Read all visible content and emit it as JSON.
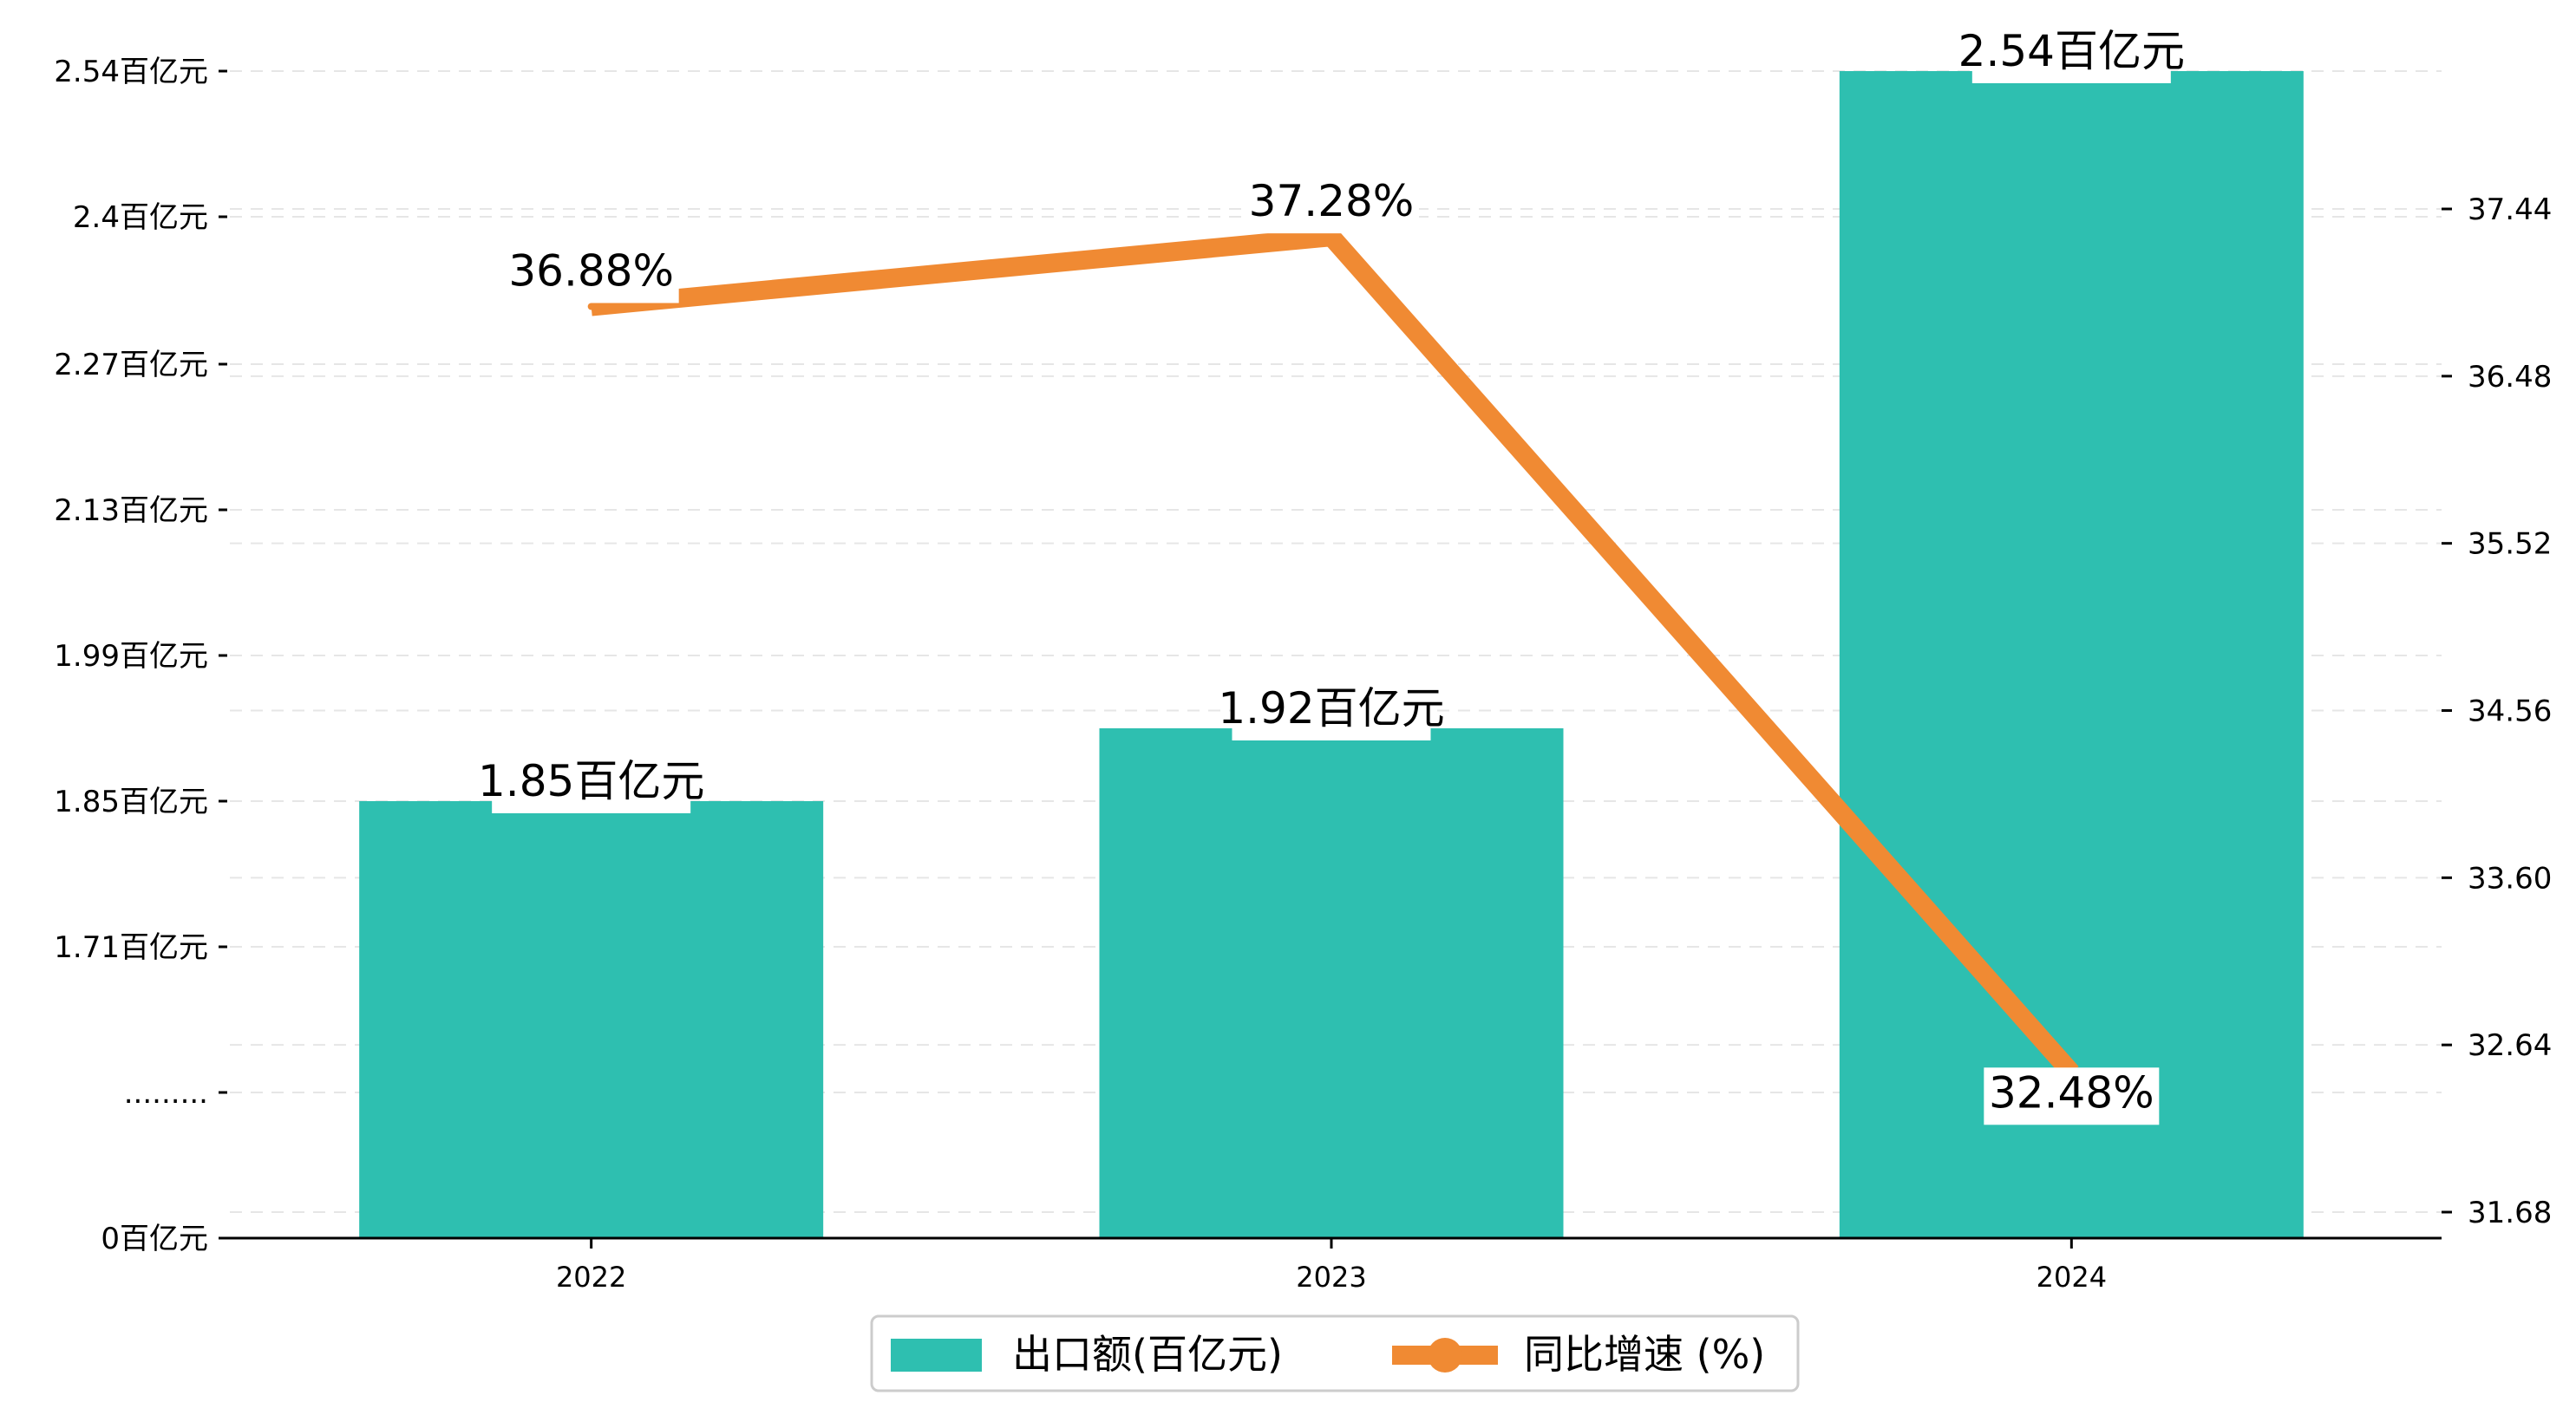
{
  "chart_data": {
    "type": "bar",
    "categories": [
      "2022",
      "2023",
      "2024"
    ],
    "series": [
      {
        "name": "出口额(百亿元)",
        "type": "bar",
        "axis": "left",
        "values": [
          1.85,
          1.92,
          2.54
        ],
        "labels": [
          "1.85百亿元",
          "1.92百亿元",
          "2.54百亿元"
        ],
        "color": "#2ebfb0"
      },
      {
        "name": "同比增速 (%)",
        "type": "line",
        "axis": "right",
        "values": [
          36.88,
          37.28,
          32.48
        ],
        "labels": [
          "36.88%",
          "37.28%",
          "32.48%"
        ],
        "color": "#f08a33"
      }
    ],
    "left_axis": {
      "ticks": [
        {
          "value": 0,
          "label": "0百亿元"
        },
        {
          "value": 1.57,
          "label": "........."
        },
        {
          "value": 1.71,
          "label": "1.71百亿元"
        },
        {
          "value": 1.85,
          "label": "1.85百亿元"
        },
        {
          "value": 1.99,
          "label": "1.99百亿元"
        },
        {
          "value": 2.13,
          "label": "2.13百亿元"
        },
        {
          "value": 2.27,
          "label": "2.27百亿元"
        },
        {
          "value": 2.4,
          "label": "2.4百亿元"
        },
        {
          "value": 2.54,
          "label": "2.54百亿元"
        }
      ],
      "axis_break": true
    },
    "right_axis": {
      "ylim": [
        31.68,
        38.4
      ],
      "ticks": [
        "31.68",
        "32.64",
        "33.60",
        "34.56",
        "35.52",
        "36.48",
        "37.44"
      ]
    },
    "grid": true,
    "legend_position": "bottom-center"
  }
}
